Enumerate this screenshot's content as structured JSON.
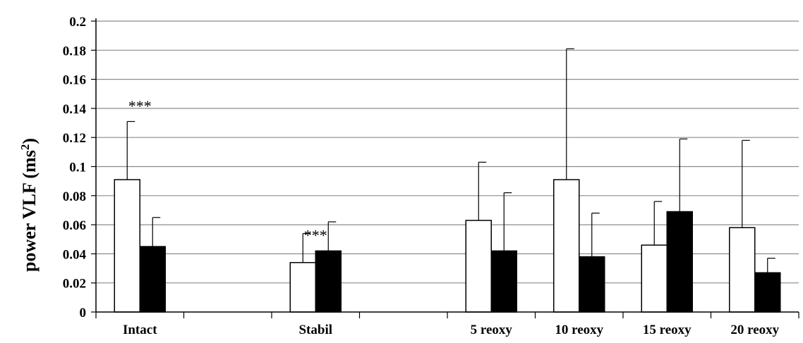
{
  "chart_data": {
    "type": "bar",
    "title": "",
    "xlabel": "",
    "ylabel": "power VLF (ms",
    "ylabel_superscript": "2",
    "ylabel_suffix": ")",
    "ylim": [
      0,
      0.2
    ],
    "yticks": [
      "0",
      "0.02",
      "0.04",
      "0.06",
      "0.08",
      "0.1",
      "0.12",
      "0.14",
      "0.16",
      "0.18",
      "0.2"
    ],
    "grid": true,
    "legend": "none",
    "slots": [
      "Intact",
      "",
      "Stabil",
      "",
      "5 reoxy",
      "10 reoxy",
      "15 reoxy",
      "20 reoxy"
    ],
    "categories": [
      "Intact",
      "Stabil",
      "5 reoxy",
      "10 reoxy",
      "15 reoxy",
      "20 reoxy"
    ],
    "series": [
      {
        "color": "#ffffff",
        "values": [
          0.091,
          0.034,
          0.063,
          0.091,
          0.046,
          0.058
        ],
        "errors": [
          0.04,
          0.02,
          0.04,
          0.09,
          0.03,
          0.06
        ]
      },
      {
        "color": "#000000",
        "values": [
          0.045,
          0.042,
          0.042,
          0.038,
          0.069,
          0.027
        ],
        "errors": [
          0.02,
          0.02,
          0.04,
          0.03,
          0.05,
          0.01
        ]
      }
    ],
    "annotations": [
      {
        "text": "***",
        "category": "Intact",
        "y": 0.142
      },
      {
        "text": "***",
        "category": "Stabil",
        "y": 0.053
      }
    ]
  }
}
